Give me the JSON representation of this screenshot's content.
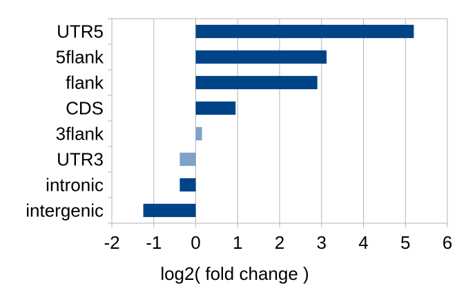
{
  "chart_data": {
    "type": "bar",
    "orientation": "horizontal",
    "categories": [
      "UTR5",
      "5flank",
      "flank",
      "CDS",
      "3flank",
      "UTR3",
      "intronic",
      "intergenic"
    ],
    "values": [
      5.2,
      3.12,
      2.9,
      0.95,
      0.15,
      -0.38,
      -0.38,
      -1.25
    ],
    "bar_colors": [
      "#004488",
      "#004488",
      "#004488",
      "#004488",
      "#7fa3c8",
      "#7fa3c8",
      "#004488",
      "#004488"
    ],
    "xlabel": "log2( fold change )",
    "xlim": [
      -2,
      6
    ],
    "xticks": [
      -2,
      -1,
      0,
      1,
      2,
      3,
      4,
      5,
      6
    ],
    "grid": "vertical",
    "legend": "none"
  }
}
